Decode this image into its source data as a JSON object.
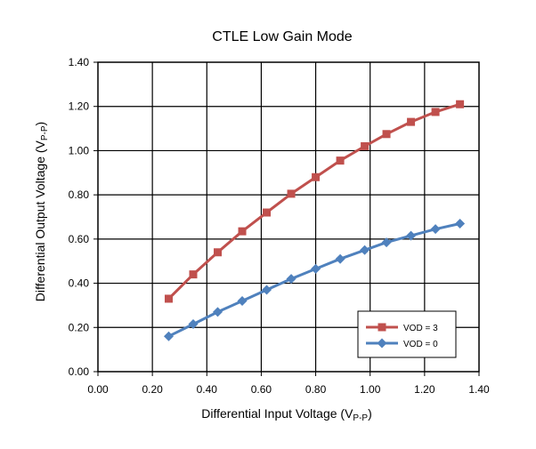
{
  "chart_data": {
    "type": "line",
    "title": "CTLE Low Gain Mode",
    "xlabel": {
      "main": "Differential Input Voltage (V",
      "sub": "P-P",
      "end": ")"
    },
    "ylabel": {
      "main": "Differential Output Voltage (V",
      "sub": "P-P",
      "end": ")"
    },
    "xlim": [
      0,
      1.4
    ],
    "ylim": [
      0,
      1.4
    ],
    "xticks": [
      "0.00",
      "0.20",
      "0.40",
      "0.60",
      "0.80",
      "1.00",
      "1.20",
      "1.40"
    ],
    "yticks": [
      "0.00",
      "0.20",
      "0.40",
      "0.60",
      "0.80",
      "1.00",
      "1.20",
      "1.40"
    ],
    "grid": true,
    "legend_position": "bottom-right",
    "series": [
      {
        "name": "VOD = 3",
        "color": "#c0504d",
        "marker": "square",
        "x": [
          0.26,
          0.35,
          0.44,
          0.53,
          0.62,
          0.71,
          0.8,
          0.89,
          0.98,
          1.06,
          1.15,
          1.24,
          1.33
        ],
        "y": [
          0.33,
          0.44,
          0.54,
          0.635,
          0.72,
          0.805,
          0.88,
          0.955,
          1.02,
          1.075,
          1.13,
          1.175,
          1.21
        ]
      },
      {
        "name": "VOD = 0",
        "color": "#4f81bd",
        "marker": "diamond",
        "x": [
          0.26,
          0.35,
          0.44,
          0.53,
          0.62,
          0.71,
          0.8,
          0.89,
          0.98,
          1.06,
          1.15,
          1.24,
          1.33
        ],
        "y": [
          0.16,
          0.215,
          0.27,
          0.32,
          0.37,
          0.42,
          0.465,
          0.51,
          0.55,
          0.585,
          0.615,
          0.645,
          0.67
        ]
      }
    ]
  }
}
